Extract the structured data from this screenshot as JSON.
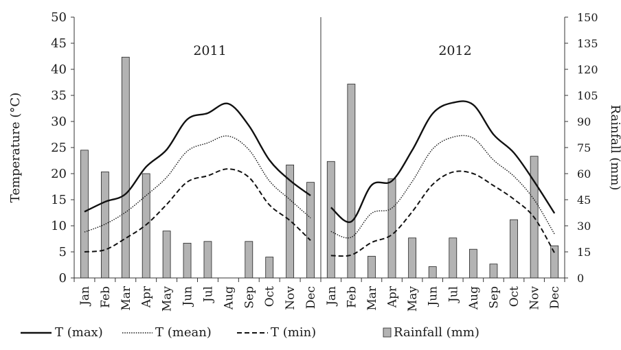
{
  "chart_data": {
    "type": "bar",
    "categories": [
      "Jan",
      "Feb",
      "Mar",
      "Apr",
      "May",
      "Jun",
      "Jul",
      "Aug",
      "Sep",
      "Oct",
      "Nov",
      "Dec"
    ],
    "y_left_label": "Temperature (°C)",
    "y_right_label": "Rainfall (mm)",
    "y_left_range": [
      0,
      50
    ],
    "y_left_ticks": [
      "0",
      "5",
      "10",
      "15",
      "20",
      "25",
      "30",
      "35",
      "40",
      "45",
      "50"
    ],
    "y_right_range": [
      0,
      150
    ],
    "y_right_ticks": [
      "0",
      "15",
      "30",
      "45",
      "60",
      "75",
      "90",
      "105",
      "120",
      "135",
      "150"
    ],
    "legend": {
      "tmax": "T (max)",
      "tmean": "T (mean)",
      "tmin": "T (min)",
      "rain": "Rainfall (mm)"
    },
    "colors": {
      "bar_fill": "#b3b3b3",
      "bar_stroke": "#222222",
      "line": "#111111"
    },
    "panels": [
      {
        "title": "2011",
        "tmax": [
          12.7,
          14.6,
          16.1,
          21.3,
          24.6,
          30.4,
          31.6,
          33.4,
          29.2,
          22.6,
          18.7,
          15.8
        ],
        "tmean": [
          8.8,
          10.3,
          12.6,
          15.8,
          19.3,
          24.3,
          25.9,
          27.2,
          24.6,
          18.6,
          15.0,
          11.5
        ],
        "tmin": [
          5.0,
          5.4,
          7.6,
          10.2,
          14.1,
          18.4,
          19.6,
          20.9,
          19.3,
          14.0,
          11.0,
          7.2
        ],
        "rainfall": [
          73.5,
          61,
          127,
          60,
          27,
          20,
          21,
          0,
          21,
          12,
          65,
          55
        ]
      },
      {
        "title": "2012",
        "tmax": [
          13.5,
          10.8,
          17.8,
          18.6,
          24.5,
          31.5,
          33.6,
          33.2,
          27.5,
          24.0,
          18.5,
          12.4
        ],
        "tmean": [
          8.9,
          7.8,
          12.4,
          13.4,
          18.5,
          24.7,
          27.0,
          26.8,
          22.6,
          19.5,
          15.0,
          8.4
        ],
        "tmin": [
          4.3,
          4.4,
          6.8,
          8.3,
          12.7,
          17.9,
          20.3,
          20.0,
          17.7,
          15.1,
          11.6,
          4.8
        ],
        "rainfall": [
          67,
          111.5,
          12.5,
          57,
          23,
          6.5,
          23,
          16.5,
          8,
          33.5,
          70,
          18.5
        ]
      }
    ]
  }
}
